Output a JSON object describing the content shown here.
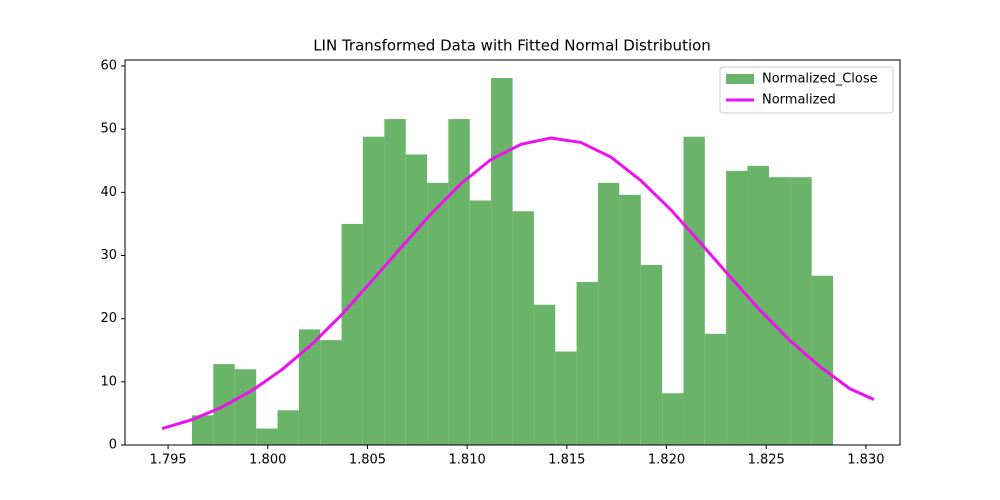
{
  "chart_data": {
    "type": "histogram",
    "title": "LIN Transformed Data with Fitted Normal Distribution",
    "bins": [
      1.7962,
      1.79727,
      1.79834,
      1.79942,
      1.80049,
      1.80156,
      1.80263,
      1.8037,
      1.80477,
      1.80585,
      1.80692,
      1.80799,
      1.80906,
      1.81013,
      1.8112,
      1.81228,
      1.81335,
      1.81442,
      1.81549,
      1.81656,
      1.81763,
      1.81871,
      1.81978,
      1.82085,
      1.82192,
      1.82299,
      1.82406,
      1.82514,
      1.82621,
      1.82728,
      1.82835
    ],
    "series": [
      {
        "name": "Normalized_Close",
        "type": "histogram",
        "color": "#6ab46a",
        "values": [
          4.7,
          12.8,
          12,
          2.6,
          5.5,
          18.3,
          16.6,
          35,
          48.8,
          51.6,
          46,
          41.5,
          51.6,
          38.7,
          58.1,
          37,
          22.2,
          14.8,
          25.8,
          41.5,
          39.6,
          28.5,
          8.2,
          48.8,
          17.6,
          43.4,
          44.2,
          42.4,
          42.4,
          26.8
        ]
      },
      {
        "name": "Normalized",
        "type": "line",
        "color": "#ee11ee",
        "x": [
          1.7947,
          1.7962,
          1.7977,
          1.7992,
          1.8007,
          1.8022,
          1.8037,
          1.8052,
          1.8067,
          1.8082,
          1.8097,
          1.8112,
          1.8127,
          1.8142,
          1.8157,
          1.8172,
          1.8187,
          1.8202,
          1.8217,
          1.8232,
          1.8247,
          1.8262,
          1.8277,
          1.8292,
          1.8304
        ],
        "values": [
          2.6,
          4.0,
          6.0,
          8.6,
          11.9,
          15.9,
          20.6,
          25.9,
          31.3,
          36.6,
          41.4,
          45.2,
          47.6,
          48.6,
          47.9,
          45.6,
          41.9,
          37.3,
          32.0,
          26.6,
          21.3,
          16.5,
          12.4,
          8.9,
          7.2
        ]
      }
    ],
    "xlim": [
      1.79284,
      1.83171
    ],
    "ylim": [
      0,
      60.95
    ],
    "xticks": [
      1.795,
      {
        "value": 1.8,
        "label": "1.800"
      },
      1.805,
      {
        "value": 1.81,
        "label": "1.810"
      },
      1.815,
      {
        "value": 1.82,
        "label": "1.820"
      },
      1.825,
      {
        "value": 1.83,
        "label": "1.830"
      }
    ],
    "yticks": [
      0,
      10,
      20,
      30,
      40,
      50,
      60
    ],
    "legend": "upper right"
  }
}
